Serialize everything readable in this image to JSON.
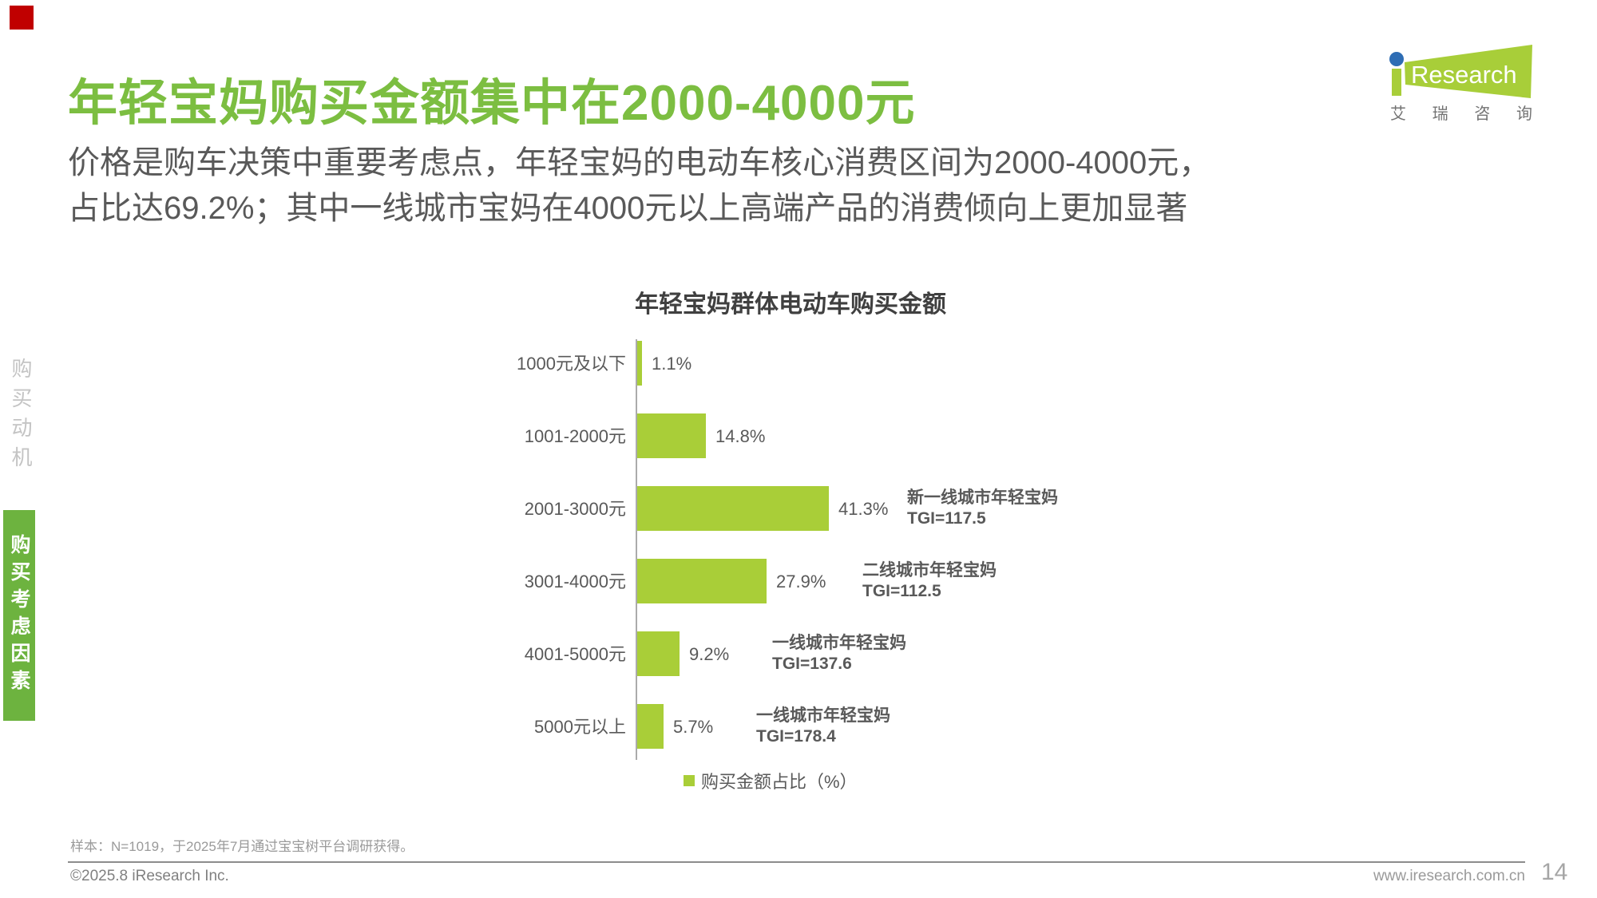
{
  "colors": {
    "title_green": "#7CBE41",
    "bar_green": "#A9CE38",
    "sidebar_green": "#6DB33F",
    "logo_green": "#A8CE39",
    "logo_dot_blue": "#2E6DB4",
    "text_dark_gray": "#595959",
    "corner_marker_red": "#C00000"
  },
  "header": {
    "title": "年轻宝妈购买金额集中在2000-4000元",
    "subtitle_line1": "价格是购车决策中重要考虑点，年轻宝妈的电动车核心消费区间为2000-4000元，",
    "subtitle_line2": "占比达69.2%；其中一线城市宝妈在4000元以上高端产品的消费倾向上更加显著"
  },
  "logo": {
    "name_rest": "Research",
    "cn": "艾瑞咨询"
  },
  "sidebar": {
    "section_inactive": "购买动机",
    "section_active": "购买考虑因素"
  },
  "chart": {
    "title": "年轻宝妈群体电动车购买金额",
    "legend_label": "购买金额占比（%）",
    "rows": [
      {
        "label": "1000元及以下",
        "value_label": "1.1%"
      },
      {
        "label": "1001-2000元",
        "value_label": "14.8%"
      },
      {
        "label": "2001-3000元",
        "value_label": "41.3%",
        "ann_line1": "新一线城市年轻宝妈",
        "ann_line2": "TGI=117.5"
      },
      {
        "label": "3001-4000元",
        "value_label": "27.9%",
        "ann_line1": "二线城市年轻宝妈",
        "ann_line2": "TGI=112.5"
      },
      {
        "label": "4001-5000元",
        "value_label": "9.2%",
        "ann_line1": "一线城市年轻宝妈",
        "ann_line2": "TGI=137.6"
      },
      {
        "label": "5000元以上",
        "value_label": "5.7%",
        "ann_line1": "一线城市年轻宝妈",
        "ann_line2": "TGI=178.4"
      }
    ]
  },
  "chart_data": {
    "type": "bar",
    "orientation": "horizontal",
    "title": "年轻宝妈群体电动车购买金额",
    "categories": [
      "1000元及以下",
      "1001-2000元",
      "2001-3000元",
      "3001-4000元",
      "4001-5000元",
      "5000元以上"
    ],
    "values": [
      1.1,
      14.8,
      41.3,
      27.9,
      9.2,
      5.7
    ],
    "unit": "%",
    "xlim": [
      0,
      45
    ],
    "grid": false,
    "legend": [
      "购买金额占比（%）"
    ],
    "legend_position": "bottom",
    "bar_color": "#A9CE38",
    "annotations": [
      {
        "category": "2001-3000元",
        "group": "新一线城市年轻宝妈",
        "tgi": "TGI=117.5"
      },
      {
        "category": "3001-4000元",
        "group": "二线城市年轻宝妈",
        "tgi": "TGI=112.5"
      },
      {
        "category": "4001-5000元",
        "group": "一线城市年轻宝妈",
        "tgi": "TGI=137.6"
      },
      {
        "category": "5000元以上",
        "group": "一线城市年轻宝妈",
        "tgi": "TGI=178.4"
      }
    ]
  },
  "footer": {
    "sample_note": "样本：N=1019，于2025年7月通过宝宝树平台调研获得。",
    "copyright": "©2025.8 iResearch Inc.",
    "website": "www.iresearch.com.cn",
    "page_number": "14"
  }
}
